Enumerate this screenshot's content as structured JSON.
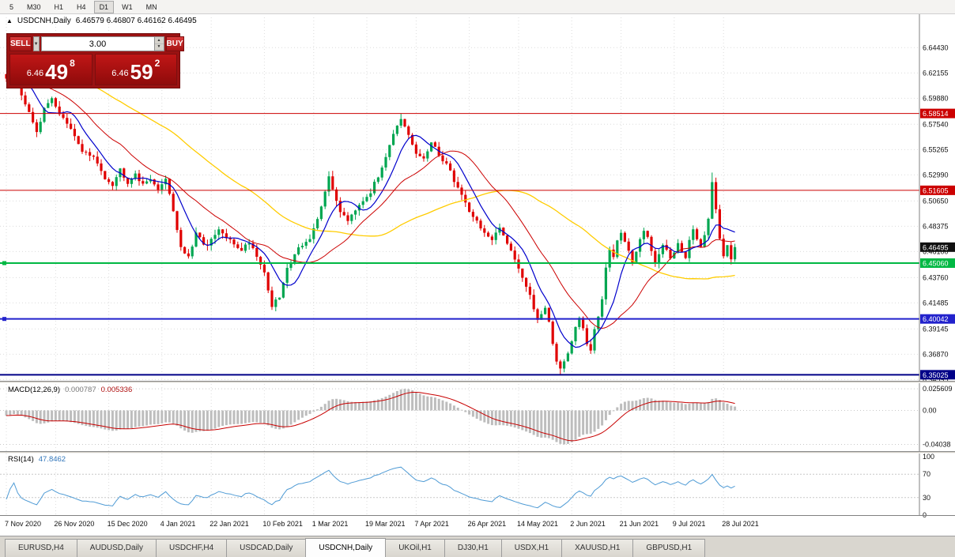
{
  "toolbar": {
    "timeframes": [
      "5",
      "M30",
      "H1",
      "H4",
      "D1",
      "W1",
      "MN"
    ],
    "active": "D1"
  },
  "icons": {
    "panel_toggle": "▲",
    "dropdown_arrow": "▼",
    "spin_up": "▲",
    "spin_down": "▼"
  },
  "chart": {
    "title_symbol": "USDCNH,Daily",
    "title_ohlc": "6.46579 6.46807 6.46162 6.46495"
  },
  "trade_panel": {
    "sell_label": "SELL",
    "buy_label": "BUY",
    "volume": "3.00",
    "sell_price": {
      "prefix": "6.46",
      "big": "49",
      "sup": "8"
    },
    "buy_price": {
      "prefix": "6.46",
      "big": "59",
      "sup": "2"
    }
  },
  "price_axis": {
    "ticks": [
      "6.64430",
      "6.62155",
      "6.59880",
      "6.57540",
      "6.55265",
      "6.52990",
      "6.50650",
      "6.48375",
      "6.46100",
      "6.43760",
      "6.41485",
      "6.39145",
      "6.36870",
      "6.34595"
    ],
    "badges": [
      {
        "label": "6.58514",
        "price": 6.58514,
        "color": "#cc0000"
      },
      {
        "label": "6.51605",
        "price": 6.51605,
        "color": "#cc0000"
      },
      {
        "label": "6.46495",
        "price": 6.46495,
        "color": "#111111"
      },
      {
        "label": "6.45060",
        "price": 6.4506,
        "color": "#00b843"
      },
      {
        "label": "6.40042",
        "price": 6.40042,
        "color": "#2222cc"
      },
      {
        "label": "6.35025",
        "price": 6.35025,
        "color": "#000088"
      }
    ]
  },
  "hlines": [
    {
      "price": 6.58514,
      "color": "#cc0000",
      "width": 1,
      "marker": false
    },
    {
      "price": 6.51605,
      "color": "#cc0000",
      "width": 1,
      "marker": false
    },
    {
      "price": 6.4506,
      "color": "#00b843",
      "width": 2,
      "marker": true
    },
    {
      "price": 6.40042,
      "color": "#2222cc",
      "width": 2,
      "marker": true
    },
    {
      "price": 6.35025,
      "color": "#000088",
      "width": 2,
      "marker": false
    }
  ],
  "indicators": {
    "macd": {
      "label": "MACD(12,26,9)",
      "value_main": "0.000787",
      "value_signal": "0.005336",
      "axis": [
        {
          "label": "0.025609",
          "value": 0.025609
        },
        {
          "label": "0.00",
          "value": 0
        },
        {
          "label": "-0.04038",
          "value": -0.04038
        }
      ],
      "axis_max": 0.025609,
      "axis_min": -0.04038
    },
    "rsi": {
      "label": "RSI(14)",
      "value": "47.8462",
      "axis": [
        {
          "label": "100",
          "value": 100
        },
        {
          "label": "70",
          "value": 70
        },
        {
          "label": "30",
          "value": 30
        },
        {
          "label": "0",
          "value": 0
        }
      ],
      "levels": [
        70,
        30
      ]
    }
  },
  "x_axis": {
    "labels": [
      {
        "text": "7 Nov 2020",
        "day": 0
      },
      {
        "text": "26 Nov 2020",
        "day": 13
      },
      {
        "text": "15 Dec 2020",
        "day": 27
      },
      {
        "text": "4 Jan 2021",
        "day": 41
      },
      {
        "text": "22 Jan 2021",
        "day": 54
      },
      {
        "text": "10 Feb 2021",
        "day": 68
      },
      {
        "text": "1 Mar 2021",
        "day": 81
      },
      {
        "text": "19 Mar 2021",
        "day": 95
      },
      {
        "text": "7 Apr 2021",
        "day": 108
      },
      {
        "text": "26 Apr 2021",
        "day": 122
      },
      {
        "text": "14 May 2021",
        "day": 135
      },
      {
        "text": "2 Jun 2021",
        "day": 149
      },
      {
        "text": "21 Jun 2021",
        "day": 162
      },
      {
        "text": "9 Jul 2021",
        "day": 176
      },
      {
        "text": "28 Jul 2021",
        "day": 189
      }
    ]
  },
  "tabs": [
    "EURUSD,H4",
    "AUDUSD,Daily",
    "USDCHF,H4",
    "USDCAD,Daily",
    "USDCNH,Daily",
    "UKOil,H1",
    "DJ30,H1",
    "USDX,H1",
    "XAUUSD,H1",
    "GBPUSD,H1"
  ],
  "active_tab_index": 4,
  "chart_data": {
    "type": "candlestick",
    "symbol": "USDCNH",
    "period": "Daily",
    "current_ohlc": {
      "open": 6.46579,
      "high": 6.46807,
      "low": 6.46162,
      "close": 6.46495
    },
    "num_days": 193,
    "last_close": 6.46495,
    "price_range": {
      "top": 6.6715,
      "bottom": 6.3448
    },
    "macd_scale": {
      "top": 0.0295,
      "bottom": -0.0455
    },
    "ma_periods": {
      "fast": 8,
      "medium": 21,
      "slow": 55
    },
    "close_anchors": [
      [
        0,
        6.618
      ],
      [
        2,
        6.63
      ],
      [
        4,
        6.602
      ],
      [
        6,
        6.585
      ],
      [
        8,
        6.57
      ],
      [
        10,
        6.588
      ],
      [
        12,
        6.6
      ],
      [
        14,
        6.585
      ],
      [
        17,
        6.57
      ],
      [
        20,
        6.552
      ],
      [
        23,
        6.545
      ],
      [
        26,
        6.528
      ],
      [
        28,
        6.522
      ],
      [
        30,
        6.535
      ],
      [
        32,
        6.524
      ],
      [
        34,
        6.532
      ],
      [
        36,
        6.52
      ],
      [
        38,
        6.528
      ],
      [
        40,
        6.515
      ],
      [
        42,
        6.528
      ],
      [
        44,
        6.498
      ],
      [
        46,
        6.465
      ],
      [
        48,
        6.455
      ],
      [
        50,
        6.476
      ],
      [
        53,
        6.466
      ],
      [
        56,
        6.48
      ],
      [
        59,
        6.47
      ],
      [
        62,
        6.463
      ],
      [
        64,
        6.47
      ],
      [
        66,
        6.458
      ],
      [
        68,
        6.442
      ],
      [
        70,
        6.412
      ],
      [
        72,
        6.42
      ],
      [
        74,
        6.445
      ],
      [
        76,
        6.46
      ],
      [
        78,
        6.468
      ],
      [
        80,
        6.472
      ],
      [
        82,
        6.488
      ],
      [
        84,
        6.515
      ],
      [
        85,
        6.53
      ],
      [
        86,
        6.515
      ],
      [
        88,
        6.498
      ],
      [
        90,
        6.49
      ],
      [
        92,
        6.5
      ],
      [
        94,
        6.508
      ],
      [
        96,
        6.515
      ],
      [
        98,
        6.528
      ],
      [
        100,
        6.548
      ],
      [
        102,
        6.568
      ],
      [
        104,
        6.578
      ],
      [
        106,
        6.565
      ],
      [
        108,
        6.548
      ],
      [
        110,
        6.545
      ],
      [
        112,
        6.558
      ],
      [
        114,
        6.548
      ],
      [
        116,
        6.54
      ],
      [
        118,
        6.525
      ],
      [
        120,
        6.512
      ],
      [
        122,
        6.498
      ],
      [
        124,
        6.488
      ],
      [
        126,
        6.478
      ],
      [
        128,
        6.47
      ],
      [
        130,
        6.482
      ],
      [
        132,
        6.47
      ],
      [
        134,
        6.455
      ],
      [
        136,
        6.438
      ],
      [
        138,
        6.42
      ],
      [
        140,
        6.4
      ],
      [
        142,
        6.412
      ],
      [
        143,
        6.398
      ],
      [
        144,
        6.378
      ],
      [
        145,
        6.362
      ],
      [
        146,
        6.357
      ],
      [
        148,
        6.368
      ],
      [
        150,
        6.392
      ],
      [
        151,
        6.402
      ],
      [
        152,
        6.39
      ],
      [
        153,
        6.378
      ],
      [
        154,
        6.372
      ],
      [
        155,
        6.39
      ],
      [
        156,
        6.402
      ],
      [
        157,
        6.42
      ],
      [
        158,
        6.448
      ],
      [
        159,
        6.465
      ],
      [
        160,
        6.458
      ],
      [
        161,
        6.47
      ],
      [
        162,
        6.478
      ],
      [
        163,
        6.47
      ],
      [
        164,
        6.46
      ],
      [
        165,
        6.452
      ],
      [
        166,
        6.462
      ],
      [
        167,
        6.472
      ],
      [
        168,
        6.48
      ],
      [
        169,
        6.472
      ],
      [
        170,
        6.46
      ],
      [
        171,
        6.452
      ],
      [
        172,
        6.458
      ],
      [
        173,
        6.468
      ],
      [
        174,
        6.462
      ],
      [
        175,
        6.455
      ],
      [
        176,
        6.462
      ],
      [
        177,
        6.47
      ],
      [
        178,
        6.462
      ],
      [
        179,
        6.455
      ],
      [
        180,
        6.47
      ],
      [
        181,
        6.48
      ],
      [
        182,
        6.472
      ],
      [
        183,
        6.465
      ],
      [
        184,
        6.478
      ],
      [
        185,
        6.492
      ],
      [
        186,
        6.525
      ],
      [
        187,
        6.498
      ],
      [
        188,
        6.472
      ],
      [
        189,
        6.458
      ],
      [
        190,
        6.468
      ],
      [
        191,
        6.455
      ],
      [
        192,
        6.465
      ]
    ],
    "forced_points": [
      {
        "day": 2,
        "high": 6.6385
      },
      {
        "day": 104,
        "high": 6.5851
      },
      {
        "day": 146,
        "low": 6.3508
      },
      {
        "day": 186,
        "high": 6.532
      }
    ],
    "colors": {
      "up": "#00a651",
      "down": "#e00000",
      "ma_fast": "#0000cc",
      "ma_medium": "#cc0000",
      "ma_slow": "#ffcc00",
      "macd_hist": "#bdbdbd",
      "macd_signal": "#c80000",
      "rsi": "#4f9bd5",
      "grid": "#dcdcdc"
    }
  }
}
